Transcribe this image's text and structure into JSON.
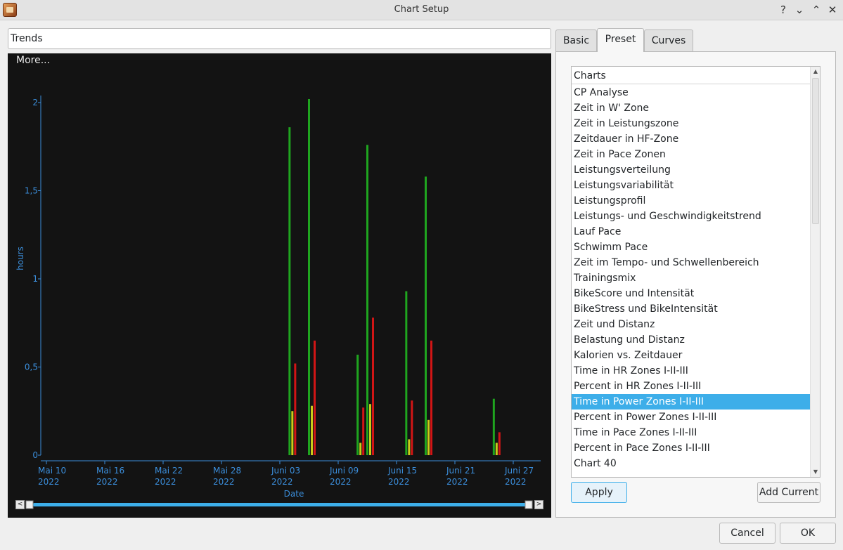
{
  "window": {
    "title": "Chart Setup",
    "buttons": {
      "help": "?",
      "minimize": "⌄",
      "maximize": "⌃",
      "close": "✕"
    }
  },
  "chart_name": "Trends",
  "chart_panel": {
    "more_label": "More...",
    "timeline_left": "<",
    "timeline_right": ">"
  },
  "tabs": [
    {
      "label": "Basic",
      "active": false
    },
    {
      "label": "Preset",
      "active": true
    },
    {
      "label": "Curves",
      "active": false
    }
  ],
  "charts_list": {
    "header": "Charts",
    "items": [
      "CP Analyse",
      "Zeit in W' Zone",
      "Zeit in Leistungszone",
      "Zeitdauer in HF-Zone",
      "Zeit in Pace Zonen",
      "Leistungsverteilung",
      "Leistungsvariabilität",
      "Leistungsprofil",
      "Leistungs- und Geschwindigkeitstrend",
      "Lauf Pace",
      "Schwimm Pace",
      "Zeit im Tempo- und Schwellenbereich",
      "Trainingsmix",
      "BikeScore und Intensität",
      "BikeStress und BikeIntensität",
      "Zeit und Distanz",
      "Belastung und Distanz",
      "Kalorien vs. Zeitdauer",
      "Time in HR Zones I-II-III",
      "Percent in HR Zones I-II-III",
      "Time in Power Zones I-II-III",
      "Percent in Power Zones I-II-III",
      "Time in Pace Zones I-II-III",
      "Percent in Pace Zones I-II-III",
      "Chart 40"
    ],
    "selected": "Time in Power Zones I-II-III"
  },
  "preset_buttons": {
    "apply": "Apply",
    "add_current": "Add Current"
  },
  "dialog_buttons": {
    "cancel": "Cancel",
    "ok": "OK"
  },
  "colors": {
    "chart_bg": "#131313",
    "axis": "#3b8edb",
    "zone1": "#1fa51f",
    "zone2": "#c8cc1a",
    "zone3": "#d11515",
    "selection": "#3daee9"
  },
  "chart_data": {
    "type": "bar",
    "xlabel": "Date",
    "ylabel": "hours",
    "ylim": [
      0,
      2.0
    ],
    "y_ticks": [
      "0",
      "0,5",
      "1",
      "1,5",
      "2"
    ],
    "x_ticks": [
      [
        "Mai 10",
        "2022"
      ],
      [
        "Mai 16",
        "2022"
      ],
      [
        "Mai 22",
        "2022"
      ],
      [
        "Mai 28",
        "2022"
      ],
      [
        "Juni 03",
        "2022"
      ],
      [
        "Juni 09",
        "2022"
      ],
      [
        "Juni 15",
        "2022"
      ],
      [
        "Juni 21",
        "2022"
      ],
      [
        "Juni 27",
        "2022"
      ]
    ],
    "x_range": [
      "2022-05-10",
      "2022-07-02"
    ],
    "series": [
      {
        "color": "#1fa51f",
        "points": [
          [
            "2022-06-04",
            1.86
          ],
          [
            "2022-06-06",
            2.02
          ],
          [
            "2022-06-11",
            0.57
          ],
          [
            "2022-06-12",
            1.76
          ],
          [
            "2022-06-16",
            0.93
          ],
          [
            "2022-06-18",
            1.58
          ],
          [
            "2022-06-25",
            0.32
          ]
        ]
      },
      {
        "color": "#c8cc1a",
        "points": [
          [
            "2022-06-04",
            0.25
          ],
          [
            "2022-06-06",
            0.28
          ],
          [
            "2022-06-11",
            0.07
          ],
          [
            "2022-06-12",
            0.29
          ],
          [
            "2022-06-16",
            0.09
          ],
          [
            "2022-06-18",
            0.2
          ],
          [
            "2022-06-25",
            0.07
          ]
        ]
      },
      {
        "color": "#d11515",
        "points": [
          [
            "2022-06-04",
            0.52
          ],
          [
            "2022-06-06",
            0.65
          ],
          [
            "2022-06-11",
            0.27
          ],
          [
            "2022-06-12",
            0.78
          ],
          [
            "2022-06-16",
            0.31
          ],
          [
            "2022-06-18",
            0.65
          ],
          [
            "2022-06-25",
            0.13
          ]
        ]
      }
    ],
    "grid": false,
    "legend": "none"
  }
}
